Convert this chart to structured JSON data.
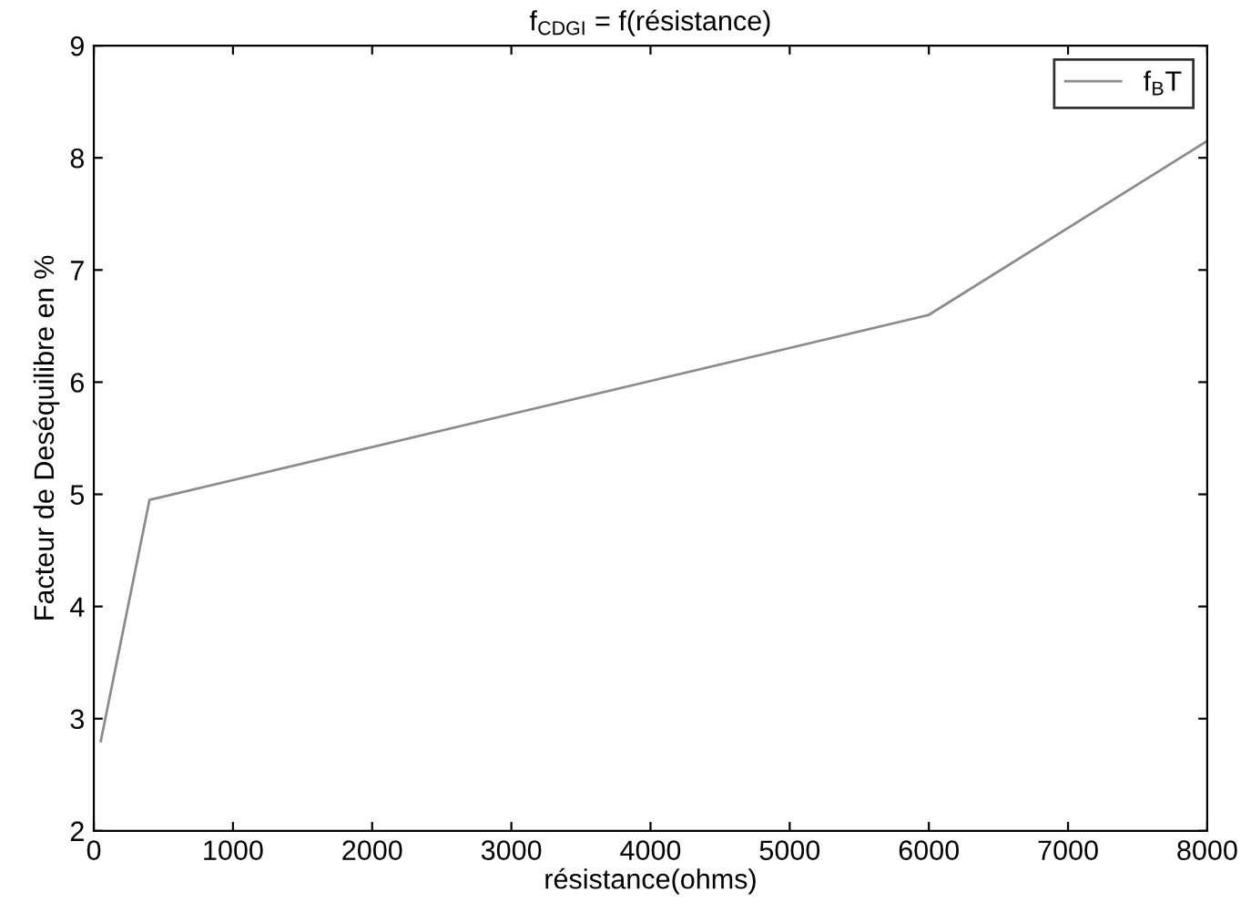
{
  "chart_data": {
    "type": "line",
    "title": "f$_{CDGI}$ = f(résistance)",
    "xlabel": "résistance(ohms)",
    "ylabel": "Facteur de Deséquilibre en %",
    "xlim": [
      0,
      8000
    ],
    "ylim": [
      2,
      9
    ],
    "xticks": [
      0,
      1000,
      2000,
      3000,
      4000,
      5000,
      6000,
      7000,
      8000
    ],
    "yticks": [
      2,
      3,
      4,
      5,
      6,
      7,
      8,
      9
    ],
    "grid": false,
    "legend": "top right",
    "marker": "none",
    "line_style": "solid",
    "series": [
      {
        "name": "f$_{B}$T",
        "color": "#8c8c8c",
        "x": [
          50,
          400,
          6000,
          8000
        ],
        "values": [
          2.8,
          4.95,
          6.6,
          8.15
        ]
      }
    ]
  }
}
